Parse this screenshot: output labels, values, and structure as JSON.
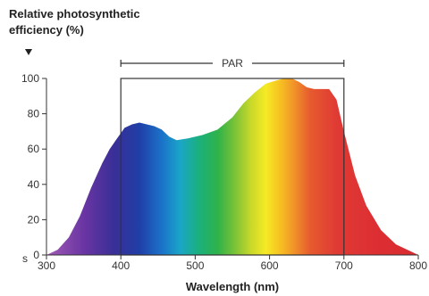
{
  "chart_data": {
    "type": "area",
    "ylabel_line1": "Relative photosynthetic",
    "ylabel_line2": "efficiency (%)",
    "xlabel": "Wavelength (nm)",
    "xlim": [
      300,
      800
    ],
    "ylim": [
      0,
      100
    ],
    "x_ticks": [
      300,
      400,
      500,
      600,
      700,
      800
    ],
    "y_ticks": [
      0,
      20,
      40,
      60,
      80,
      100
    ],
    "grid": false,
    "band": {
      "label": "PAR",
      "start": 400,
      "end": 700,
      "top": 100
    },
    "x": [
      300,
      315,
      330,
      345,
      360,
      375,
      385,
      395,
      405,
      415,
      425,
      435,
      445,
      455,
      465,
      475,
      490,
      510,
      530,
      550,
      565,
      580,
      595,
      610,
      620,
      630,
      640,
      650,
      660,
      670,
      680,
      690,
      700,
      715,
      730,
      750,
      770,
      790,
      800
    ],
    "y": [
      0,
      3,
      10,
      22,
      38,
      52,
      60,
      66,
      72,
      74,
      75,
      74,
      73,
      71,
      67,
      65,
      66,
      68,
      71,
      78,
      86,
      92,
      97,
      99,
      100,
      100,
      98,
      95,
      94,
      94,
      94,
      88,
      70,
      45,
      28,
      14,
      6,
      2,
      0
    ]
  },
  "margin_note": "s"
}
